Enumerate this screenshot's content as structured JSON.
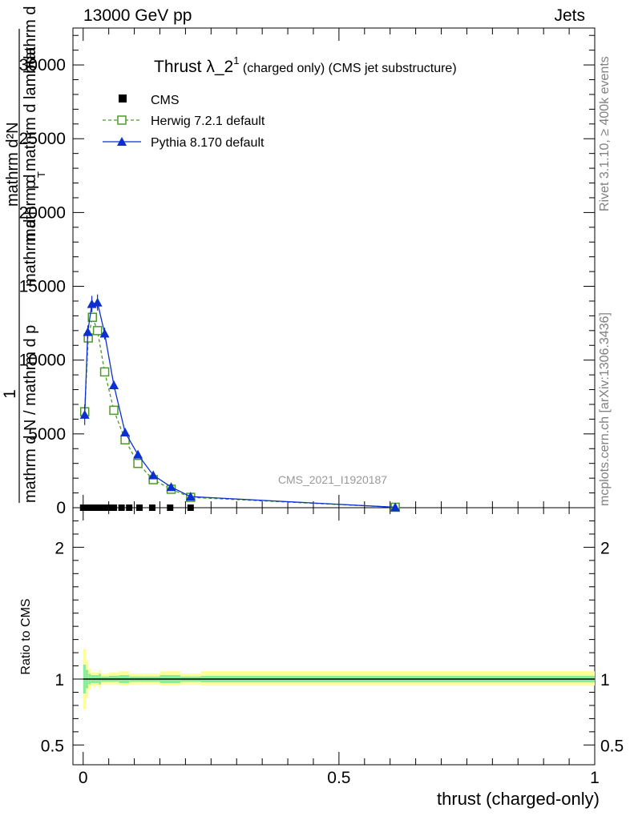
{
  "header": {
    "left": "13000 GeV pp",
    "right": "Jets"
  },
  "side_text": {
    "rivet": "Rivet 3.1.10, ≥ 400k events",
    "mcplots": "mcplots.cern.ch [arXiv:1306.3436]"
  },
  "chart_data": [
    {
      "type": "line",
      "title": "Thrust λ_2^1 (charged only) (CMS jet substructure)",
      "title_main": "Thrust λ_2",
      "title_sup": "1",
      "title_rest": " (charged only) (CMS jet substructure)",
      "ylabel_parts": [
        "1",
        "mathrm d N / mathrm d p",
        "mathrm d",
        "mathrm d²N",
        "p",
        "T",
        "mathrm d lambda",
        "mathrm d",
        "mathrm d"
      ],
      "ylabel": "1 / mathrm d N / mathrm d p_T mathrm d² N / mathrm d p_T mathrm d lambda",
      "xlabel": "thrust (charged-only)",
      "xlim": [
        -0.02,
        1.0
      ],
      "ylim": [
        0,
        32500
      ],
      "ytick_values": [
        0,
        5000,
        10000,
        15000,
        20000,
        25000,
        30000
      ],
      "ytick_labels": [
        "0",
        "5000",
        "10000",
        "15000",
        "20000",
        "25000",
        "30000"
      ],
      "watermark": "CMS_2021_I1920187",
      "legend_position": "top-left",
      "series": [
        {
          "name": "CMS",
          "marker": "filled-square",
          "color": "#000000",
          "x": [
            0.0,
            0.01,
            0.02,
            0.03,
            0.04,
            0.05,
            0.06,
            0.075,
            0.09,
            0.11,
            0.135,
            0.17,
            0.21
          ],
          "y": [
            0,
            0,
            0,
            0,
            0,
            0,
            0,
            0,
            0,
            0,
            0,
            0,
            0
          ]
        },
        {
          "name": "Herwig 7.2.1 default",
          "marker": "open-square",
          "line": "dashed",
          "color": "#4d9a28",
          "x": [
            0.003,
            0.01,
            0.018,
            0.028,
            0.042,
            0.06,
            0.082,
            0.107,
            0.137,
            0.172,
            0.21,
            0.61
          ],
          "y": [
            6500,
            11500,
            12900,
            12000,
            9200,
            6600,
            4600,
            3000,
            1900,
            1250,
            700,
            30
          ]
        },
        {
          "name": "Pythia 8.170 default",
          "marker": "filled-triangle",
          "line": "solid",
          "color": "#0b2fd1",
          "x": [
            0.003,
            0.009,
            0.017,
            0.028,
            0.042,
            0.06,
            0.082,
            0.107,
            0.137,
            0.172,
            0.21,
            0.61
          ],
          "y": [
            6300,
            11900,
            13800,
            13900,
            11800,
            8300,
            5100,
            3600,
            2200,
            1400,
            750,
            30
          ],
          "y_err": [
            700,
            450,
            550,
            550,
            400,
            300,
            200,
            150,
            100,
            80,
            60,
            20
          ]
        }
      ]
    },
    {
      "type": "area",
      "title": "",
      "ylabel": "Ratio to CMS",
      "xlabel": "thrust (charged-only)",
      "xlim": [
        -0.02,
        1.0
      ],
      "ylim": [
        0.35,
        2.3
      ],
      "ytick_values": [
        0.5,
        1,
        2
      ],
      "ytick_labels": [
        "0.5",
        "1",
        "2"
      ],
      "xtick_values": [
        0,
        0.5,
        1
      ],
      "xtick_labels": [
        "0",
        "0.5",
        "1"
      ],
      "reference_line": 1.0,
      "bands": {
        "x_edges": [
          0.0,
          0.005,
          0.01,
          0.015,
          0.02,
          0.025,
          0.03,
          0.035,
          0.05,
          0.07,
          0.09,
          0.12,
          0.15,
          0.19,
          0.23,
          1.0
        ],
        "outer_low": [
          0.77,
          0.86,
          0.92,
          0.95,
          0.94,
          0.95,
          0.93,
          0.96,
          0.96,
          0.95,
          0.96,
          0.96,
          0.95,
          0.96,
          0.95
        ],
        "outer_high": [
          1.23,
          1.14,
          1.08,
          1.05,
          1.05,
          1.05,
          1.07,
          1.04,
          1.05,
          1.06,
          1.04,
          1.04,
          1.06,
          1.04,
          1.06
        ],
        "inner_low": [
          0.89,
          0.93,
          0.96,
          0.97,
          0.97,
          0.97,
          0.96,
          0.98,
          0.98,
          0.97,
          0.98,
          0.98,
          0.97,
          0.98,
          0.975
        ],
        "inner_high": [
          1.11,
          1.07,
          1.04,
          1.03,
          1.03,
          1.03,
          1.04,
          1.02,
          1.025,
          1.03,
          1.02,
          1.02,
          1.03,
          1.02,
          1.025
        ],
        "outer_color": "#ffff99",
        "inner_color": "#88ee99"
      }
    }
  ]
}
